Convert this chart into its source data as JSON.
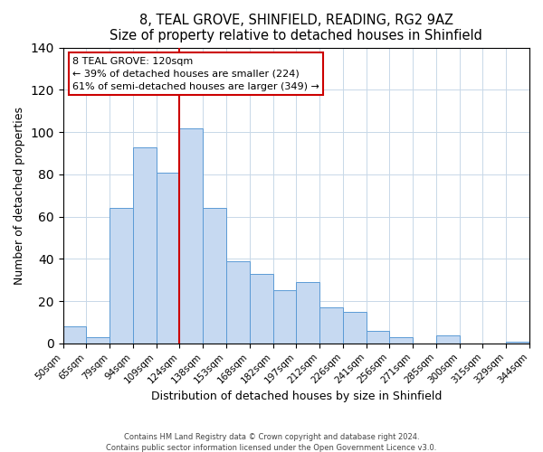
{
  "title": "8, TEAL GROVE, SHINFIELD, READING, RG2 9AZ",
  "subtitle": "Size of property relative to detached houses in Shinfield",
  "xlabel": "Distribution of detached houses by size in Shinfield",
  "ylabel": "Number of detached properties",
  "bar_labels": [
    "50sqm",
    "65sqm",
    "79sqm",
    "94sqm",
    "109sqm",
    "124sqm",
    "138sqm",
    "153sqm",
    "168sqm",
    "182sqm",
    "197sqm",
    "212sqm",
    "226sqm",
    "241sqm",
    "256sqm",
    "271sqm",
    "285sqm",
    "300sqm",
    "315sqm",
    "329sqm",
    "344sqm"
  ],
  "bar_values": [
    8,
    3,
    64,
    93,
    81,
    102,
    64,
    39,
    33,
    25,
    29,
    17,
    15,
    6,
    3,
    0,
    4,
    0,
    0,
    1
  ],
  "bar_color": "#c6d9f1",
  "bar_edge_color": "#5b9bd5",
  "vline_x": 5,
  "vline_color": "#cc0000",
  "annotation_title": "8 TEAL GROVE: 120sqm",
  "annotation_line1": "← 39% of detached houses are smaller (224)",
  "annotation_line2": "61% of semi-detached houses are larger (349) →",
  "annotation_box_color": "#ffffff",
  "annotation_box_edge": "#cc0000",
  "ylim": [
    0,
    140
  ],
  "footer1": "Contains HM Land Registry data © Crown copyright and database right 2024.",
  "footer2": "Contains public sector information licensed under the Open Government Licence v3.0."
}
